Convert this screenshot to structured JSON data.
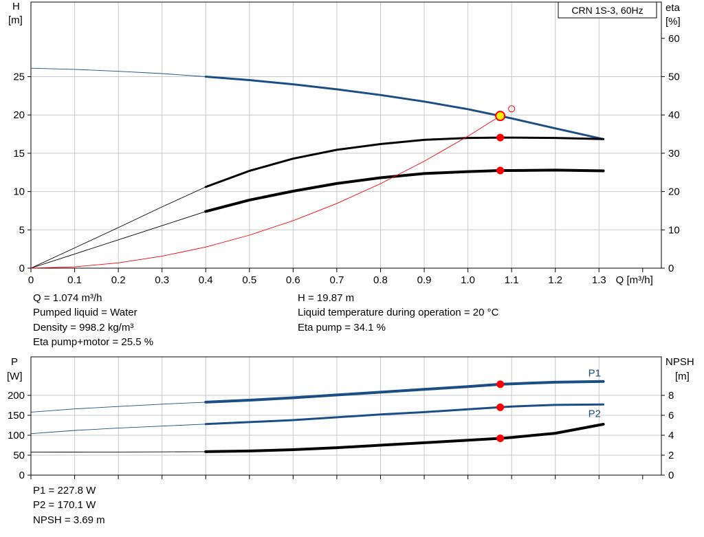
{
  "model_label": "CRN 1S-3, 60Hz",
  "colors": {
    "head_curve": "#1a4e85",
    "efficiency_curve": "#000000",
    "system_curve": "#ff0000",
    "duty_point": "#ff0000",
    "duty_point_head_fill": "#ffee00",
    "grid": "#c8c8c8"
  },
  "info_top_left": [
    "Q = 1.074 m³/h",
    "Pumped liquid = Water",
    "Density = 998.2 kg/m³",
    "Eta pump+motor = 25.5 %"
  ],
  "info_top_right": [
    "H = 19.87 m",
    "Liquid temperature during operation = 20 °C",
    "Eta pump = 34.1 %"
  ],
  "info_bottom": [
    "P1 = 227.8 W",
    "P2 = 170.1 W",
    "NPSH = 3.69 m"
  ],
  "chart_data": [
    {
      "type": "line",
      "id": "performance",
      "x_label": "Q [m³/h]",
      "x_ticks": [
        "0",
        "0.1",
        "0.2",
        "0.3",
        "0.4",
        "0.5",
        "0.6",
        "0.7",
        "0.8",
        "0.9",
        "1.0",
        "1.1",
        "1.2",
        "1.3"
      ],
      "xlim": [
        0,
        1.4
      ],
      "y_left": {
        "label_lines": [
          "H",
          "[m]"
        ],
        "ticks": [
          "0",
          "5",
          "10",
          "15",
          "20",
          "25"
        ],
        "ylim": [
          0,
          35
        ]
      },
      "y_right": {
        "label_lines": [
          "eta",
          "[%]"
        ],
        "ticks": [
          "0",
          "10",
          "20",
          "30",
          "40",
          "50",
          "60"
        ],
        "ylim": [
          0,
          70
        ]
      },
      "grid": true,
      "series": [
        {
          "id": "H",
          "axis": "left",
          "color": "#1a4e85",
          "x": [
            0,
            0.1,
            0.2,
            0.3,
            0.4,
            0.5,
            0.6,
            0.7,
            0.8,
            0.9,
            1.0,
            1.074,
            1.1,
            1.2,
            1.31
          ],
          "y": [
            26.1,
            25.95,
            25.7,
            25.4,
            25.0,
            24.55,
            24.0,
            23.35,
            22.6,
            21.75,
            20.75,
            19.87,
            19.55,
            18.25,
            16.85
          ],
          "bold_from": 0.4
        },
        {
          "id": "eta_pump",
          "axis": "right",
          "color": "#000000",
          "x": [
            0,
            0.1,
            0.2,
            0.3,
            0.4,
            0.5,
            0.6,
            0.7,
            0.8,
            0.9,
            1.0,
            1.074,
            1.1,
            1.2,
            1.31
          ],
          "y": [
            0,
            5.3,
            10.6,
            16.0,
            21.2,
            25.4,
            28.6,
            30.9,
            32.4,
            33.5,
            34.0,
            34.1,
            34.1,
            34.0,
            33.7
          ],
          "bold_from": 0.4
        },
        {
          "id": "eta_pump_motor",
          "axis": "right",
          "color": "#000000",
          "x": [
            0,
            0.1,
            0.2,
            0.3,
            0.4,
            0.5,
            0.6,
            0.7,
            0.8,
            0.9,
            1.0,
            1.074,
            1.1,
            1.2,
            1.31
          ],
          "y": [
            0,
            3.7,
            7.4,
            11.1,
            14.8,
            17.8,
            20.1,
            22.1,
            23.6,
            24.7,
            25.2,
            25.5,
            25.5,
            25.6,
            25.4
          ],
          "bold_from": 0.4,
          "thick": true
        },
        {
          "id": "system",
          "axis": "left",
          "color": "#ff0000",
          "x": [
            0,
            0.1,
            0.2,
            0.3,
            0.4,
            0.5,
            0.6,
            0.7,
            0.8,
            0.9,
            1.0,
            1.074
          ],
          "y": [
            0,
            0.17,
            0.69,
            1.56,
            2.76,
            4.31,
            6.2,
            8.45,
            11.03,
            13.96,
            17.23,
            19.87
          ]
        }
      ],
      "duty_points": [
        {
          "axis": "left",
          "x": 1.074,
          "y": 19.87,
          "style": "head"
        },
        {
          "axis": "right",
          "x": 1.074,
          "y": 34.1
        },
        {
          "axis": "right",
          "x": 1.074,
          "y": 25.5
        }
      ],
      "open_marker": {
        "axis": "left",
        "x": 1.1,
        "y": 20.8
      }
    },
    {
      "type": "line",
      "id": "power",
      "xlim": [
        0,
        1.4
      ],
      "y_left": {
        "label_lines": [
          "P",
          "[W]"
        ],
        "ticks": [
          "0",
          "50",
          "100",
          "150",
          "200"
        ],
        "ylim": [
          0,
          300
        ]
      },
      "y_right": {
        "label_lines": [
          "NPSH",
          "[m]"
        ],
        "ticks": [
          "0",
          "2",
          "4",
          "6",
          "8"
        ],
        "ylim": [
          0,
          12
        ]
      },
      "grid": true,
      "series": [
        {
          "id": "P1",
          "name": "P1",
          "axis": "left",
          "color": "#1a4e85",
          "x": [
            0,
            0.1,
            0.2,
            0.3,
            0.4,
            0.5,
            0.6,
            0.7,
            0.8,
            0.9,
            1.0,
            1.074,
            1.1,
            1.2,
            1.31
          ],
          "y": [
            158,
            166,
            172,
            178,
            183,
            188,
            194,
            201,
            208,
            215,
            222,
            227.8,
            229,
            233,
            235
          ],
          "bold_from": 0.4,
          "thick": true
        },
        {
          "id": "P2",
          "name": "P2",
          "axis": "left",
          "color": "#1a4e85",
          "x": [
            0,
            0.1,
            0.2,
            0.3,
            0.4,
            0.5,
            0.6,
            0.7,
            0.8,
            0.9,
            1.0,
            1.074,
            1.1,
            1.2,
            1.31
          ],
          "y": [
            104,
            112,
            118,
            123,
            128,
            133,
            138,
            145,
            152,
            158,
            165,
            170.1,
            172,
            176,
            177
          ],
          "bold_from": 0.4
        },
        {
          "id": "NPSH",
          "axis": "right",
          "color": "#000000",
          "x": [
            0,
            0.1,
            0.2,
            0.3,
            0.4,
            0.5,
            0.6,
            0.7,
            0.8,
            0.9,
            1.0,
            1.074,
            1.1,
            1.2,
            1.31
          ],
          "y": [
            2.3,
            2.31,
            2.32,
            2.33,
            2.35,
            2.42,
            2.55,
            2.75,
            3.0,
            3.25,
            3.5,
            3.69,
            3.78,
            4.2,
            5.1
          ],
          "bold_from": 0.4,
          "thick": true
        }
      ],
      "duty_points": [
        {
          "axis": "left",
          "x": 1.074,
          "y": 227.8
        },
        {
          "axis": "left",
          "x": 1.074,
          "y": 170.1
        },
        {
          "axis": "right",
          "x": 1.074,
          "y": 3.69
        }
      ]
    }
  ]
}
